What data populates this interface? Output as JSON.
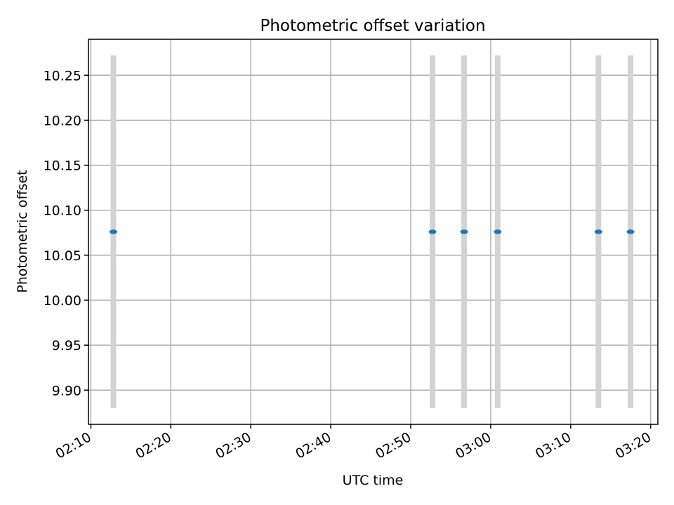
{
  "chart_data": {
    "type": "scatter",
    "title": "Photometric offset variation",
    "xlabel": "UTC time",
    "ylabel": "Photometric offset",
    "x_ticks": [
      "02:10",
      "02:20",
      "02:30",
      "02:40",
      "02:50",
      "03:00",
      "03:10",
      "03:20"
    ],
    "x_tick_minutes": [
      0,
      10,
      20,
      30,
      40,
      50,
      60,
      70
    ],
    "y_ticks": [
      "9.90",
      "9.95",
      "10.00",
      "10.05",
      "10.10",
      "10.15",
      "10.20",
      "10.25"
    ],
    "y_tick_values": [
      9.9,
      9.95,
      10.0,
      10.05,
      10.1,
      10.15,
      10.2,
      10.25
    ],
    "xlim_minutes": [
      -0.3,
      70.9
    ],
    "ylim": [
      9.862,
      10.29
    ],
    "grid": true,
    "x_tick_label_rotation": "30 degrees",
    "series": [
      {
        "x": [
          "02:12:49",
          "02:52:43",
          "02:56:41",
          "03:00:52",
          "03:13:28",
          "03:17:29"
        ],
        "x_minutes": [
          2.82,
          42.72,
          46.68,
          50.87,
          63.47,
          67.48
        ],
        "y": [
          10.076,
          10.076,
          10.076,
          10.076,
          10.076,
          10.076
        ],
        "yerr": [
          0.196,
          0.196,
          0.196,
          0.196,
          0.196,
          0.196
        ],
        "marker_color": "#1f77b4",
        "errorbar_color": "#d3d3d3"
      }
    ]
  }
}
